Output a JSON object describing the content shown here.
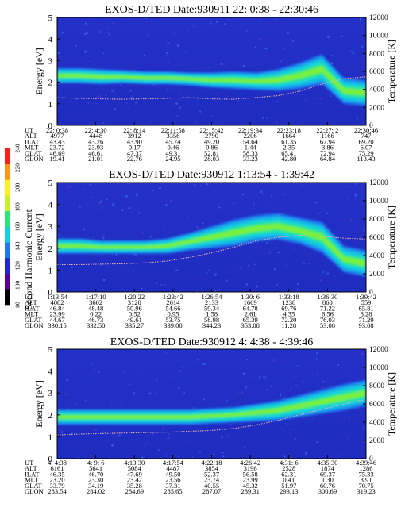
{
  "chart_data": {
    "type": "heatmap",
    "colorbar": {
      "label": "Second Harmonic Current",
      "ticks": [
        "80",
        "100",
        "120",
        "140",
        "160",
        "180",
        "200",
        "220",
        "240"
      ],
      "colors": [
        "#000000",
        "#5a0096",
        "#1e28d2",
        "#1e78f0",
        "#14d2dc",
        "#28e678",
        "#c8f028",
        "#fff020",
        "#ff9614",
        "#ff1e1e"
      ],
      "range": [
        80,
        240
      ]
    },
    "panels": [
      {
        "title": "EXOS-D/TED   Date:930911  22: 0:38 - 22:30:46",
        "ylabel": "Energy [eV]",
        "y2label": "Temperature [K]",
        "ylim": [
          0,
          5
        ],
        "y2lim": [
          0,
          12000
        ],
        "yticks": [
          "0",
          "1",
          "2",
          "3",
          "4",
          "5"
        ],
        "y2ticks": [
          "0",
          "2000",
          "4000",
          "6000",
          "8000",
          "10000",
          "12000"
        ],
        "band_center": [
          2.3,
          2.3,
          2.25,
          2.25,
          2.2,
          2.2,
          2.15,
          2.1,
          2.1,
          2.05,
          2.1,
          2.3,
          2.6,
          1.6,
          1.5
        ],
        "band_width": [
          0.35,
          0.35,
          0.35,
          0.3,
          0.3,
          0.3,
          0.3,
          0.35,
          0.4,
          0.4,
          0.5,
          0.6,
          0.7,
          0.6,
          0.6
        ],
        "temperature": [
          3100,
          3000,
          2950,
          2900,
          2950,
          3000,
          3100,
          2950,
          2900,
          3100,
          3300,
          3800,
          4600,
          5200,
          5400
        ],
        "table": {
          "labels": [
            "UT",
            "ALT",
            "ILAT",
            "MLT",
            "GLAT",
            "GLON"
          ],
          "columns": [
            [
              "22: 0:38",
              "4977",
              "43.43",
              "23.72",
              "46.69",
              "19.41"
            ],
            [
              "22: 4:30",
              "4448",
              "43.26",
              "23.93",
              "46.61",
              "21.01"
            ],
            [
              "22: 8:14",
              "3912",
              "43.90",
              "0.17",
              "47.37",
              "22.76"
            ],
            [
              "22:11:58",
              "3356",
              "45.74",
              "0.46",
              "49.31",
              "24.95"
            ],
            [
              "22:15:42",
              "2790",
              "49.20",
              "0.86",
              "52.81",
              "28.03"
            ],
            [
              "22:19:34",
              "2206",
              "54.64",
              "1.44",
              "58.33",
              "33.23"
            ],
            [
              "22:23:18",
              "1664",
              "61.35",
              "2.35",
              "65.41",
              "42.80"
            ],
            [
              "22:27: 2",
              "1166",
              "67.94",
              "3.86",
              "72.94",
              "64.84"
            ],
            [
              "22:30:46",
              "747",
              "69.20",
              "6.07",
              "75.29",
              "113.43"
            ]
          ]
        }
      },
      {
        "title": "EXOS-D/TED   Date:930912  1:13:54 - 1:39:42",
        "ylabel": "Energy [eV]",
        "y2label": "Temperature [K]",
        "ylim": [
          0,
          5
        ],
        "y2lim": [
          0,
          12000
        ],
        "yticks": [
          "0",
          "1",
          "2",
          "3",
          "4",
          "5"
        ],
        "y2ticks": [
          "0",
          "2000",
          "4000",
          "6000",
          "8000",
          "10000",
          "12000"
        ],
        "band_center": [
          2.1,
          2.1,
          2.05,
          2.05,
          2.05,
          2.1,
          2.3,
          2.5,
          2.7,
          2.9,
          3.0,
          2.8,
          2.5,
          1.5,
          1.3
        ],
        "band_width": [
          0.35,
          0.35,
          0.3,
          0.3,
          0.3,
          0.35,
          0.4,
          0.5,
          0.6,
          0.6,
          0.6,
          0.6,
          0.7,
          0.6,
          0.6
        ],
        "temperature": [
          3000,
          3000,
          3050,
          3100,
          3200,
          3400,
          3800,
          4300,
          4900,
          5600,
          6000,
          6200,
          6100,
          5900,
          5800
        ],
        "table": {
          "labels": [
            "UT",
            "ALT",
            "ILAT",
            "MLT",
            "GLAT",
            "GLON"
          ],
          "columns": [
            [
              "1:13:54",
              "4082",
              "46.84",
              "23.99",
              "44.67",
              "330.15"
            ],
            [
              "1:17:10",
              "3602",
              "48.48",
              "0.22",
              "46.73",
              "332.50"
            ],
            [
              "1:20:22",
              "3120",
              "50.96",
              "0.52",
              "49.61",
              "335.27"
            ],
            [
              "1:23:42",
              "2614",
              "54.66",
              "0.95",
              "53.75",
              "339.00"
            ],
            [
              "1:26:54",
              "2133",
              "59.34",
              "1.58",
              "58.98",
              "344.23"
            ],
            [
              "1:30: 6",
              "1669",
              "64.78",
              "2.61",
              "65.39",
              "353.08"
            ],
            [
              "1:33:18",
              "1238",
              "69.76",
              "4.35",
              "72.20",
              "11.28"
            ],
            [
              "1:36:30",
              "860",
              "71.22",
              "6.56",
              "76.03",
              "53.08"
            ],
            [
              "1:39:42",
              "559",
              "65.81",
              "8.28",
              "71.29",
              "93.08"
            ]
          ]
        }
      },
      {
        "title": "EXOS-D/TED   Date:930912  4: 4:38 - 4:39:46",
        "ylabel": "Energy [eV]",
        "y2label": "Temperature [K]",
        "ylim": [
          0,
          5
        ],
        "y2lim": [
          0,
          12000
        ],
        "yticks": [
          "0",
          "1",
          "2",
          "3",
          "4",
          "5"
        ],
        "y2ticks": [
          "0",
          "2000",
          "4000",
          "6000",
          "8000",
          "10000",
          "12000"
        ],
        "band_center": [
          1.9,
          1.9,
          1.9,
          1.9,
          1.9,
          1.9,
          1.9,
          1.95,
          2.0,
          2.1,
          2.2,
          2.4,
          2.6,
          2.8,
          3.0
        ],
        "band_width": [
          0.35,
          0.35,
          0.35,
          0.35,
          0.35,
          0.35,
          0.35,
          0.35,
          0.35,
          0.4,
          0.45,
          0.5,
          0.55,
          0.6,
          0.6
        ],
        "temperature": [
          2600,
          2700,
          2750,
          2800,
          2850,
          2900,
          3000,
          3100,
          3300,
          3700,
          4200,
          4800,
          5400,
          6000,
          6500
        ],
        "table": {
          "labels": [
            "UT",
            "ALT",
            "ILAT",
            "MLT",
            "GLAT",
            "GLON"
          ],
          "columns": [
            [
              "4: 4:38",
              "6161",
              "46.35",
              "23.20",
              "33.79",
              "283.54"
            ],
            [
              "4: 9: 6",
              "5641",
              "46.70",
              "23.30",
              "34.19",
              "284.02"
            ],
            [
              "4:13:30",
              "5084",
              "47.69",
              "23.42",
              "35.28",
              "284.69"
            ],
            [
              "4:17:54",
              "4487",
              "49.50",
              "23.56",
              "37.31",
              "285.65"
            ],
            [
              "4:22:18",
              "3854",
              "52.37",
              "23.74",
              "40.55",
              "287.07"
            ],
            [
              "4:26:42",
              "3196",
              "56.58",
              "23.99",
              "45.32",
              "289.31"
            ],
            [
              "4:31: 6",
              "2528",
              "62.31",
              "0.41",
              "51.97",
              "293.13"
            ],
            [
              "4:35:30",
              "1874",
              "69.37",
              "1.30",
              "60.76",
              "300.69"
            ],
            [
              "4:39:46",
              "1286",
              "75.33",
              "3.91",
              "70.75",
              "319.23"
            ]
          ]
        }
      }
    ]
  }
}
